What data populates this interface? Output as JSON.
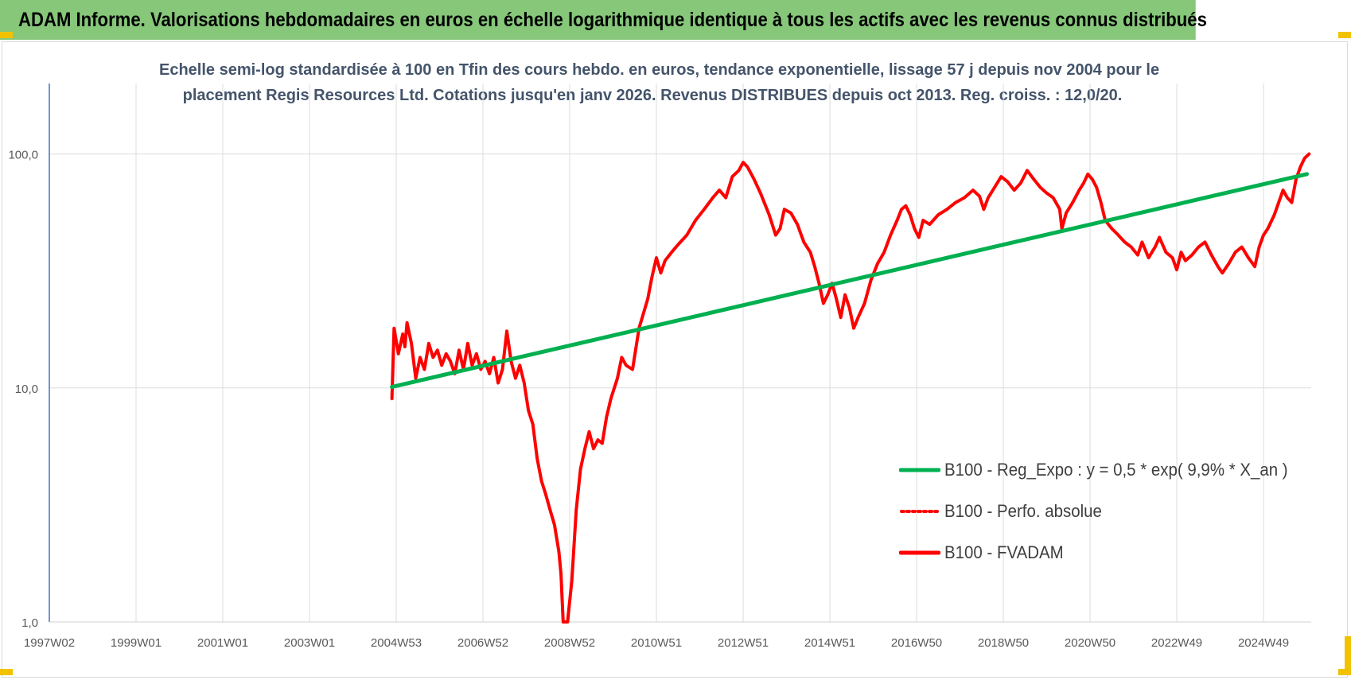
{
  "banner": {
    "title": "ADAM Informe. Valorisations hebdomadaires en euros en échelle logarithmique identique à tous les actifs avec les revenus connus distribués",
    "background": "#86c77a",
    "corner_color": "#f2c200"
  },
  "chart_data": {
    "type": "line",
    "title_line1": "Echelle semi-log standardisée à 100 en Tfin des cours hebdo. en euros, tendance exponentielle, lissage 57 j depuis nov 2004 pour le",
    "title_line2": "placement Regis Resources Ltd. Cotations jusqu'en janv 2026. Revenus DISTRIBUES depuis oct 2013. Reg. croiss. : 12,0/20.",
    "x_scale": "years",
    "xlim": [
      1997.0,
      2026.1
    ],
    "x_ticks": [
      {
        "label": "1997W02",
        "year": 1997.0
      },
      {
        "label": "1999W01",
        "year": 1999.0
      },
      {
        "label": "2001W01",
        "year": 2001.0
      },
      {
        "label": "2003W01",
        "year": 2003.0
      },
      {
        "label": "2004W53",
        "year": 2005.0
      },
      {
        "label": "2006W52",
        "year": 2007.0
      },
      {
        "label": "2008W52",
        "year": 2009.0
      },
      {
        "label": "2010W51",
        "year": 2011.0
      },
      {
        "label": "2012W51",
        "year": 2013.0
      },
      {
        "label": "2014W51",
        "year": 2015.0
      },
      {
        "label": "2016W50",
        "year": 2017.0
      },
      {
        "label": "2018W50",
        "year": 2019.0
      },
      {
        "label": "2020W50",
        "year": 2021.0
      },
      {
        "label": "2022W49",
        "year": 2023.0
      },
      {
        "label": "2024W49",
        "year": 2025.0
      }
    ],
    "y_scale": "log",
    "ylim": [
      1,
      200
    ],
    "y_ticks": [
      {
        "label": "1,0",
        "value": 1
      },
      {
        "label": "10,0",
        "value": 10
      },
      {
        "label": "100,0",
        "value": 100
      }
    ],
    "grid": "vertical and horizontal",
    "legend_position": "bottom-right",
    "series": [
      {
        "name": "B100 - Reg_Expo : y = 0,5 * exp( 9,9% *  X_an )",
        "color": "#00b050",
        "style": "solid",
        "points": [
          [
            2004.9,
            10.1
          ],
          [
            2026.0,
            82.0
          ]
        ]
      },
      {
        "name": "B100 - Perfo. absolue",
        "color": "#ff0000",
        "style": "dotted",
        "points": []
      },
      {
        "name": "B100 - FVADAM",
        "color": "#ff0000",
        "style": "solid",
        "points": [
          [
            2004.9,
            9.0
          ],
          [
            2004.95,
            18.0
          ],
          [
            2005.05,
            14.0
          ],
          [
            2005.15,
            17.0
          ],
          [
            2005.2,
            15.0
          ],
          [
            2005.25,
            19.0
          ],
          [
            2005.35,
            15.5
          ],
          [
            2005.45,
            11.0
          ],
          [
            2005.55,
            13.5
          ],
          [
            2005.65,
            12.0
          ],
          [
            2005.75,
            15.5
          ],
          [
            2005.85,
            13.5
          ],
          [
            2005.95,
            14.5
          ],
          [
            2006.05,
            12.5
          ],
          [
            2006.15,
            14.0
          ],
          [
            2006.25,
            13.0
          ],
          [
            2006.35,
            11.5
          ],
          [
            2006.45,
            14.5
          ],
          [
            2006.55,
            12.0
          ],
          [
            2006.65,
            15.5
          ],
          [
            2006.75,
            12.5
          ],
          [
            2006.85,
            14.0
          ],
          [
            2006.95,
            12.0
          ],
          [
            2007.05,
            13.0
          ],
          [
            2007.15,
            11.5
          ],
          [
            2007.25,
            13.5
          ],
          [
            2007.35,
            10.5
          ],
          [
            2007.45,
            12.0
          ],
          [
            2007.55,
            17.5
          ],
          [
            2007.65,
            13.0
          ],
          [
            2007.75,
            11.0
          ],
          [
            2007.85,
            12.5
          ],
          [
            2007.95,
            10.5
          ],
          [
            2008.05,
            8.0
          ],
          [
            2008.15,
            7.0
          ],
          [
            2008.25,
            5.0
          ],
          [
            2008.35,
            4.0
          ],
          [
            2008.45,
            3.5
          ],
          [
            2008.55,
            3.0
          ],
          [
            2008.65,
            2.6
          ],
          [
            2008.75,
            2.0
          ],
          [
            2008.8,
            1.6
          ],
          [
            2008.85,
            1.0
          ],
          [
            2008.95,
            1.0
          ],
          [
            2009.05,
            1.5
          ],
          [
            2009.15,
            3.0
          ],
          [
            2009.25,
            4.5
          ],
          [
            2009.35,
            5.5
          ],
          [
            2009.45,
            6.5
          ],
          [
            2009.55,
            5.5
          ],
          [
            2009.65,
            6.0
          ],
          [
            2009.75,
            5.8
          ],
          [
            2009.85,
            7.5
          ],
          [
            2009.95,
            9.0
          ],
          [
            2010.1,
            11.0
          ],
          [
            2010.2,
            13.5
          ],
          [
            2010.3,
            12.5
          ],
          [
            2010.45,
            12.0
          ],
          [
            2010.6,
            18.0
          ],
          [
            2010.8,
            24.0
          ],
          [
            2010.9,
            30.0
          ],
          [
            2011.0,
            36.0
          ],
          [
            2011.1,
            31.0
          ],
          [
            2011.2,
            35.0
          ],
          [
            2011.35,
            38.0
          ],
          [
            2011.5,
            41.0
          ],
          [
            2011.7,
            45.0
          ],
          [
            2011.9,
            52.0
          ],
          [
            2012.1,
            58.0
          ],
          [
            2012.3,
            65.0
          ],
          [
            2012.45,
            70.0
          ],
          [
            2012.6,
            65.0
          ],
          [
            2012.75,
            80.0
          ],
          [
            2012.9,
            85.0
          ],
          [
            2013.0,
            92.0
          ],
          [
            2013.1,
            88.0
          ],
          [
            2013.25,
            78.0
          ],
          [
            2013.4,
            68.0
          ],
          [
            2013.6,
            55.0
          ],
          [
            2013.75,
            45.0
          ],
          [
            2013.85,
            48.0
          ],
          [
            2013.95,
            58.0
          ],
          [
            2014.1,
            56.0
          ],
          [
            2014.25,
            50.0
          ],
          [
            2014.4,
            42.0
          ],
          [
            2014.55,
            38.0
          ],
          [
            2014.65,
            33.0
          ],
          [
            2014.75,
            28.0
          ],
          [
            2014.85,
            23.0
          ],
          [
            2014.95,
            25.0
          ],
          [
            2015.05,
            28.0
          ],
          [
            2015.15,
            24.0
          ],
          [
            2015.25,
            20.0
          ],
          [
            2015.35,
            25.0
          ],
          [
            2015.45,
            22.0
          ],
          [
            2015.55,
            18.0
          ],
          [
            2015.65,
            20.0
          ],
          [
            2015.8,
            23.0
          ],
          [
            2015.95,
            29.0
          ],
          [
            2016.1,
            34.0
          ],
          [
            2016.25,
            38.0
          ],
          [
            2016.4,
            45.0
          ],
          [
            2016.55,
            52.0
          ],
          [
            2016.65,
            58.0
          ],
          [
            2016.75,
            60.0
          ],
          [
            2016.85,
            55.0
          ],
          [
            2016.95,
            48.0
          ],
          [
            2017.05,
            44.0
          ],
          [
            2017.15,
            52.0
          ],
          [
            2017.3,
            50.0
          ],
          [
            2017.5,
            55.0
          ],
          [
            2017.7,
            58.0
          ],
          [
            2017.9,
            62.0
          ],
          [
            2018.1,
            65.0
          ],
          [
            2018.3,
            70.0
          ],
          [
            2018.45,
            66.0
          ],
          [
            2018.55,
            58.0
          ],
          [
            2018.65,
            65.0
          ],
          [
            2018.8,
            72.0
          ],
          [
            2018.95,
            80.0
          ],
          [
            2019.1,
            76.0
          ],
          [
            2019.25,
            70.0
          ],
          [
            2019.4,
            75.0
          ],
          [
            2019.55,
            85.0
          ],
          [
            2019.7,
            78.0
          ],
          [
            2019.85,
            72.0
          ],
          [
            2020.0,
            68.0
          ],
          [
            2020.15,
            65.0
          ],
          [
            2020.3,
            58.0
          ],
          [
            2020.35,
            48.0
          ],
          [
            2020.45,
            56.0
          ],
          [
            2020.6,
            62.0
          ],
          [
            2020.75,
            70.0
          ],
          [
            2020.85,
            75.0
          ],
          [
            2020.95,
            82.0
          ],
          [
            2021.05,
            78.0
          ],
          [
            2021.15,
            72.0
          ],
          [
            2021.25,
            62.0
          ],
          [
            2021.35,
            52.0
          ],
          [
            2021.5,
            48.0
          ],
          [
            2021.65,
            45.0
          ],
          [
            2021.8,
            42.0
          ],
          [
            2021.95,
            40.0
          ],
          [
            2022.1,
            37.0
          ],
          [
            2022.2,
            42.0
          ],
          [
            2022.35,
            36.0
          ],
          [
            2022.5,
            40.0
          ],
          [
            2022.6,
            44.0
          ],
          [
            2022.75,
            38.0
          ],
          [
            2022.9,
            36.0
          ],
          [
            2023.0,
            32.0
          ],
          [
            2023.1,
            38.0
          ],
          [
            2023.2,
            35.0
          ],
          [
            2023.35,
            37.0
          ],
          [
            2023.5,
            40.0
          ],
          [
            2023.65,
            42.0
          ],
          [
            2023.8,
            37.0
          ],
          [
            2023.95,
            33.0
          ],
          [
            2024.05,
            31.0
          ],
          [
            2024.2,
            34.0
          ],
          [
            2024.35,
            38.0
          ],
          [
            2024.5,
            40.0
          ],
          [
            2024.65,
            36.0
          ],
          [
            2024.8,
            33.0
          ],
          [
            2024.9,
            40.0
          ],
          [
            2025.0,
            45.0
          ],
          [
            2025.1,
            48.0
          ],
          [
            2025.25,
            55.0
          ],
          [
            2025.35,
            62.0
          ],
          [
            2025.45,
            70.0
          ],
          [
            2025.55,
            65.0
          ],
          [
            2025.65,
            62.0
          ],
          [
            2025.75,
            78.0
          ],
          [
            2025.85,
            88.0
          ],
          [
            2025.95,
            96.0
          ],
          [
            2026.05,
            100.0
          ]
        ]
      }
    ]
  }
}
